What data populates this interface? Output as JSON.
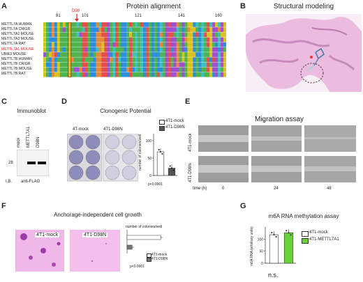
{
  "panels": {
    "a": {
      "letter": "A",
      "title": "Protein alignment",
      "positions": [
        "81",
        "101",
        "121",
        "141",
        "160"
      ],
      "mutation": "D98",
      "species": [
        "METTL7A HUMAN",
        "METTL7A CRIGR",
        "METTL7A2 MOUSE",
        "METTL7A3 MOUSE",
        "METTL7A RAT",
        "METTL7A1 MOUSE",
        "UBIE3 MOUSE",
        "METTL7B HUMAN",
        "METTL7B CRIGR",
        "METTL7B MOUSE",
        "METTL7B RAT"
      ]
    },
    "b": {
      "letter": "B",
      "title": "Structural modeling"
    },
    "c": {
      "letter": "C",
      "title": "Immunoblot",
      "lanes": [
        "mock",
        "METTL7A1",
        "D98N"
      ],
      "marker": "28",
      "ib_label": "I.B.",
      "antibody": "anti-FLAG"
    },
    "d": {
      "letter": "D",
      "title": "Clonogenic Potential",
      "plate_labels": [
        "4T-mock",
        "4T1-D98N"
      ],
      "legend": [
        "4T1-mock",
        "4T1-D98N"
      ],
      "ylabel": "number of colonies/well",
      "pvalue": "p<0.0001",
      "yticks": [
        "100",
        "50",
        "0"
      ]
    },
    "e": {
      "letter": "E",
      "title": "Migration assay",
      "rows": [
        "4T1-mock",
        "4T1-D98N"
      ],
      "time_label": "time (h)",
      "times": [
        "0",
        "24",
        "48"
      ]
    },
    "f": {
      "letter": "F",
      "title": "Anchorage-independent cell growth",
      "images": [
        "4T1-mock",
        "4T1-D98N"
      ],
      "axis_title": "number of colonies/well",
      "legend": [
        "4T1-mock",
        "4T1-D98N"
      ],
      "pvalue": "p<0.0001"
    },
    "g": {
      "letter": "G",
      "title": "m6A RNA methylation assay",
      "ylabel": "m6A RNA (arbitrary units)",
      "yticks": [
        "100",
        "50",
        "0"
      ],
      "legend": [
        "4T1-mock",
        "4T1-METTL7A1"
      ],
      "significance": "n.s."
    }
  },
  "colors": {
    "green": "#6ad13b",
    "red": "#d22",
    "pink": "#e9b6dd"
  },
  "chart_data": [
    {
      "type": "bar",
      "title": "Clonogenic Potential",
      "categories": [
        "4T1-mock",
        "4T1-D98N"
      ],
      "values": [
        68,
        21
      ],
      "ylabel": "number of colonies/well",
      "ylim": [
        0,
        120
      ]
    },
    {
      "type": "bar",
      "title": "Anchorage-independent cell growth",
      "categories": [
        "4T1-mock",
        "4T1-D98N"
      ],
      "values": [
        10,
        1.5
      ]
    },
    {
      "type": "bar",
      "title": "m6A RNA methylation assay",
      "categories": [
        "4T1-mock",
        "4T1-METTL7A1"
      ],
      "values": [
        118,
        126
      ],
      "ylabel": "m6A RNA (arbitrary units)",
      "ylim": [
        0,
        150
      ]
    }
  ]
}
